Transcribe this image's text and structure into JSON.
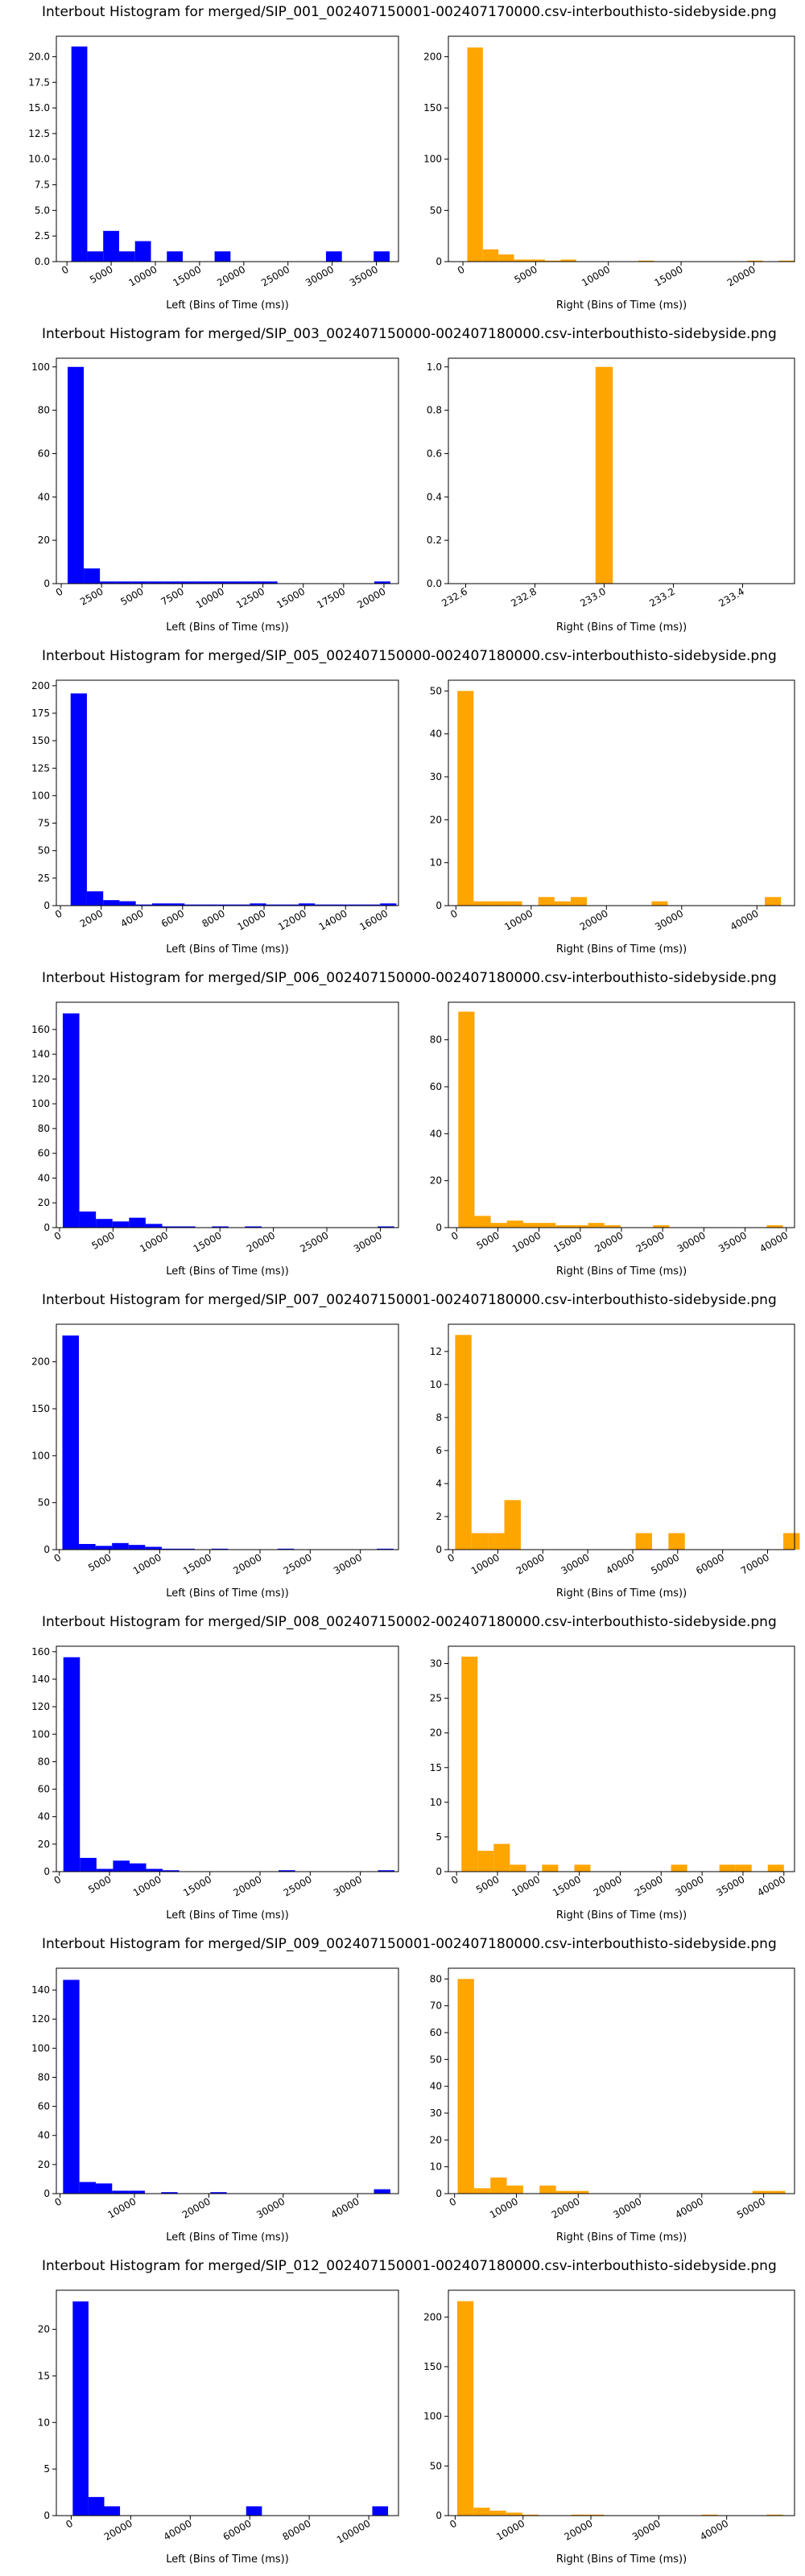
{
  "colors": {
    "left_bars": "#0000ff",
    "right_bars": "#ffa500"
  },
  "chart_data": [
    {
      "type": "bar",
      "title": "Interbout Histogram for merged/SIP_001_002407150001-002407170000.csv-interbouthisto-sidebyside.png",
      "left": {
        "xlabel": "Left (Bins of Time (ms))",
        "xlim": [
          -1200,
          37500
        ],
        "ylim": [
          0,
          22
        ],
        "xticks": [
          0,
          5000,
          10000,
          15000,
          20000,
          25000,
          30000,
          35000
        ],
        "xticklabels": [
          "0",
          "5000",
          "10000",
          "15000",
          "20000",
          "25000",
          "30000",
          "35000"
        ],
        "yticks": [
          0,
          2.5,
          5,
          7.5,
          10,
          12.5,
          15,
          17.5,
          20
        ],
        "yticklabels": [
          "0.0",
          "2.5",
          "5.0",
          "7.5",
          "10.0",
          "12.5",
          "15.0",
          "17.5",
          "20.0"
        ],
        "bin_start": 500,
        "bin_width": 1800,
        "values": [
          21,
          1,
          3,
          1,
          2,
          0,
          1,
          0,
          0,
          1,
          0,
          0,
          0,
          0,
          0,
          0,
          1,
          0,
          0,
          1
        ]
      },
      "right": {
        "xlabel": "Right (Bins of Time (ms))",
        "xlim": [
          -1000,
          22800
        ],
        "ylim": [
          0,
          220
        ],
        "xticks": [
          0,
          5000,
          10000,
          15000,
          20000
        ],
        "xticklabels": [
          "0",
          "5000",
          "10000",
          "15000",
          "20000"
        ],
        "yticks": [
          0,
          50,
          100,
          150,
          200
        ],
        "yticklabels": [
          "0",
          "50",
          "100",
          "150",
          "200"
        ],
        "bin_start": 300,
        "bin_width": 1070,
        "values": [
          209,
          12,
          7,
          2,
          2,
          1,
          2,
          0,
          0,
          0,
          0,
          1,
          0,
          0,
          0,
          0,
          0,
          0,
          1,
          0,
          1
        ]
      }
    },
    {
      "type": "bar",
      "title": "Interbout Histogram for merged/SIP_003_002407150000-002407180000.csv-interbouthisto-sidebyside.png",
      "left": {
        "xlabel": "Left (Bins of Time (ms))",
        "xlim": [
          -300,
          20900
        ],
        "ylim": [
          0,
          104
        ],
        "xticks": [
          0,
          2500,
          5000,
          7500,
          10000,
          12500,
          15000,
          17500,
          20000
        ],
        "xticklabels": [
          "0",
          "2500",
          "5000",
          "7500",
          "10000",
          "12500",
          "15000",
          "17500",
          "20000"
        ],
        "yticks": [
          0,
          20,
          40,
          60,
          80,
          100
        ],
        "yticklabels": [
          "0",
          "20",
          "40",
          "60",
          "80",
          "100"
        ],
        "bin_start": 400,
        "bin_width": 1000,
        "values": [
          100,
          7,
          1,
          1,
          1,
          1,
          1,
          1,
          1,
          1,
          1,
          1,
          1,
          0,
          0,
          0,
          0,
          0,
          0,
          1
        ]
      },
      "right": {
        "xlabel": "Right (Bins of Time (ms))",
        "xlim": [
          232.55,
          233.55
        ],
        "ylim": [
          0,
          1.04
        ],
        "xticks": [
          232.6,
          232.8,
          233.0,
          233.2,
          233.4
        ],
        "xticklabels": [
          "232.6",
          "232.8",
          "233.0",
          "233.2",
          "233.4"
        ],
        "yticks": [
          0,
          0.2,
          0.4,
          0.6,
          0.8,
          1.0
        ],
        "yticklabels": [
          "0.0",
          "0.2",
          "0.4",
          "0.6",
          "0.8",
          "1.0"
        ],
        "bin_start": 232.975,
        "bin_width": 0.05,
        "values": [
          1
        ]
      }
    },
    {
      "type": "bar",
      "title": "Interbout Histogram for merged/SIP_005_002407150000-002407180000.csv-interbouthisto-sidebyside.png",
      "left": {
        "xlabel": "Left (Bins of Time (ms))",
        "xlim": [
          -200,
          16600
        ],
        "ylim": [
          0,
          205
        ],
        "xticks": [
          0,
          2000,
          4000,
          6000,
          8000,
          10000,
          12000,
          14000,
          16000
        ],
        "xticklabels": [
          "0",
          "2000",
          "4000",
          "6000",
          "8000",
          "10000",
          "12000",
          "14000",
          "16000"
        ],
        "yticks": [
          0,
          25,
          50,
          75,
          100,
          125,
          150,
          175,
          200
        ],
        "yticklabels": [
          "0",
          "25",
          "50",
          "75",
          "100",
          "125",
          "150",
          "175",
          "200"
        ],
        "bin_start": 500,
        "bin_width": 800,
        "values": [
          193,
          13,
          5,
          4,
          1,
          2,
          2,
          1,
          1,
          1,
          1,
          2,
          1,
          1,
          2,
          1,
          1,
          1,
          1,
          2
        ]
      },
      "right": {
        "xlabel": "Right (Bins of Time (ms))",
        "xlim": [
          -1000,
          45000
        ],
        "ylim": [
          0,
          52.5
        ],
        "xticks": [
          0,
          10000,
          20000,
          30000,
          40000
        ],
        "xticklabels": [
          "0",
          "10000",
          "20000",
          "30000",
          "40000"
        ],
        "yticks": [
          0,
          10,
          20,
          30,
          40,
          50
        ],
        "yticklabels": [
          "0",
          "10",
          "20",
          "30",
          "40",
          "50"
        ],
        "bin_start": 200,
        "bin_width": 2150,
        "values": [
          50,
          1,
          1,
          1,
          0,
          2,
          1,
          2,
          0,
          0,
          0,
          0,
          1,
          0,
          0,
          0,
          0,
          0,
          0,
          2
        ]
      }
    },
    {
      "type": "bar",
      "title": "Interbout Histogram for merged/SIP_006_002407150000-002407180000.csv-interbouthisto-sidebyside.png",
      "left": {
        "xlabel": "Left (Bins of Time (ms))",
        "xlim": [
          -300,
          31700
        ],
        "ylim": [
          0,
          182
        ],
        "xticks": [
          0,
          5000,
          10000,
          15000,
          20000,
          25000,
          30000
        ],
        "xticklabels": [
          "0",
          "5000",
          "10000",
          "15000",
          "20000",
          "25000",
          "30000"
        ],
        "yticks": [
          0,
          20,
          40,
          60,
          80,
          100,
          120,
          140,
          160
        ],
        "yticklabels": [
          "0",
          "20",
          "40",
          "60",
          "80",
          "100",
          "120",
          "140",
          "160"
        ],
        "bin_start": 300,
        "bin_width": 1550,
        "values": [
          173,
          13,
          7,
          5,
          8,
          3,
          1,
          1,
          0,
          1,
          0,
          1,
          0,
          0,
          0,
          0,
          0,
          0,
          0,
          1
        ]
      },
      "right": {
        "xlabel": "Right (Bins of Time (ms))",
        "xlim": [
          -1000,
          41000
        ],
        "ylim": [
          0,
          96
        ],
        "xticks": [
          0,
          5000,
          10000,
          15000,
          20000,
          25000,
          30000,
          35000,
          40000
        ],
        "xticklabels": [
          "0",
          "5000",
          "10000",
          "15000",
          "20000",
          "25000",
          "30000",
          "35000",
          "40000"
        ],
        "yticks": [
          0,
          20,
          40,
          60,
          80
        ],
        "yticklabels": [
          "0",
          "20",
          "40",
          "60",
          "80"
        ],
        "bin_start": 200,
        "bin_width": 1970,
        "values": [
          92,
          5,
          2,
          3,
          2,
          2,
          1,
          1,
          2,
          1,
          0,
          0,
          1,
          0,
          0,
          0,
          0,
          0,
          0,
          1
        ]
      }
    },
    {
      "type": "bar",
      "title": "Interbout Histogram for merged/SIP_007_002407150001-002407180000.csv-interbouthisto-sidebyside.png",
      "left": {
        "xlabel": "Left (Bins of Time (ms))",
        "xlim": [
          -300,
          33800
        ],
        "ylim": [
          0,
          240
        ],
        "xticks": [
          0,
          5000,
          10000,
          15000,
          20000,
          25000,
          30000
        ],
        "xticklabels": [
          "0",
          "5000",
          "10000",
          "15000",
          "20000",
          "25000",
          "30000"
        ],
        "yticks": [
          0,
          50,
          100,
          150,
          200
        ],
        "yticklabels": [
          "0",
          "50",
          "100",
          "150",
          "200"
        ],
        "bin_start": 300,
        "bin_width": 1650,
        "values": [
          228,
          6,
          4,
          7,
          5,
          3,
          1,
          1,
          0,
          1,
          0,
          0,
          0,
          1,
          0,
          0,
          0,
          0,
          0,
          1
        ]
      },
      "right": {
        "xlabel": "Right (Bins of Time (ms))",
        "xlim": [
          -1000,
          76000
        ],
        "ylim": [
          0,
          13.65
        ],
        "xticks": [
          0,
          10000,
          20000,
          30000,
          40000,
          50000,
          60000,
          70000
        ],
        "xticklabels": [
          "0",
          "10000",
          "20000",
          "30000",
          "40000",
          "50000",
          "60000",
          "70000"
        ],
        "yticks": [
          0,
          2,
          4,
          6,
          8,
          10,
          12
        ],
        "yticklabels": [
          "0",
          "2",
          "4",
          "6",
          "8",
          "10",
          "12"
        ],
        "bin_start": 500,
        "bin_width": 3650,
        "values": [
          13,
          1,
          1,
          3,
          0,
          0,
          0,
          0,
          0,
          0,
          0,
          1,
          0,
          1,
          0,
          0,
          0,
          0,
          0,
          0,
          1
        ]
      }
    },
    {
      "type": "bar",
      "title": "Interbout Histogram for merged/SIP_008_002407150002-002407180000.csv-interbouthisto-sidebyside.png",
      "left": {
        "xlabel": "Left (Bins of Time (ms))",
        "xlim": [
          -300,
          33800
        ],
        "ylim": [
          0,
          164
        ],
        "xticks": [
          0,
          5000,
          10000,
          15000,
          20000,
          25000,
          30000
        ],
        "xticklabels": [
          "0",
          "5000",
          "10000",
          "15000",
          "20000",
          "25000",
          "30000"
        ],
        "yticks": [
          0,
          20,
          40,
          60,
          80,
          100,
          120,
          140,
          160
        ],
        "yticklabels": [
          "0",
          "20",
          "40",
          "60",
          "80",
          "100",
          "120",
          "140",
          "160"
        ],
        "bin_start": 400,
        "bin_width": 1650,
        "values": [
          156,
          10,
          2,
          8,
          6,
          2,
          1,
          0,
          0,
          0,
          0,
          0,
          0,
          1,
          0,
          0,
          0,
          0,
          0,
          1
        ]
      },
      "right": {
        "xlabel": "Right (Bins of Time (ms))",
        "xlim": [
          -1000,
          41300
        ],
        "ylim": [
          0,
          32.5
        ],
        "xticks": [
          0,
          5000,
          10000,
          15000,
          20000,
          25000,
          30000,
          35000,
          40000
        ],
        "xticklabels": [
          "0",
          "5000",
          "10000",
          "15000",
          "20000",
          "25000",
          "30000",
          "35000",
          "40000"
        ],
        "yticks": [
          0,
          5,
          10,
          15,
          20,
          25,
          30
        ],
        "yticklabels": [
          "0",
          "5",
          "10",
          "15",
          "20",
          "25",
          "30"
        ],
        "bin_start": 600,
        "bin_width": 1970,
        "values": [
          31,
          3,
          4,
          1,
          0,
          1,
          0,
          1,
          0,
          0,
          0,
          0,
          0,
          1,
          0,
          0,
          1,
          1,
          0,
          1
        ]
      }
    },
    {
      "type": "bar",
      "title": "Interbout Histogram for merged/SIP_009_002407150001-002407180000.csv-interbouthisto-sidebyside.png",
      "left": {
        "xlabel": "Left (Bins of Time (ms))",
        "xlim": [
          -500,
          45500
        ],
        "ylim": [
          0,
          155
        ],
        "xticks": [
          0,
          10000,
          20000,
          30000,
          40000
        ],
        "xticklabels": [
          "0",
          "10000",
          "20000",
          "30000",
          "40000"
        ],
        "yticks": [
          0,
          20,
          40,
          60,
          80,
          100,
          120,
          140
        ],
        "yticklabels": [
          "0",
          "20",
          "40",
          "60",
          "80",
          "100",
          "120",
          "140"
        ],
        "bin_start": 400,
        "bin_width": 2200,
        "values": [
          147,
          8,
          7,
          2,
          2,
          0,
          1,
          0,
          0,
          1,
          0,
          0,
          0,
          0,
          0,
          0,
          0,
          0,
          0,
          3
        ]
      },
      "right": {
        "xlabel": "Right (Bins of Time (ms))",
        "xlim": [
          -1000,
          55000
        ],
        "ylim": [
          0,
          84
        ],
        "xticks": [
          0,
          10000,
          20000,
          30000,
          40000,
          50000
        ],
        "xticklabels": [
          "0",
          "10000",
          "20000",
          "30000",
          "40000",
          "50000"
        ],
        "yticks": [
          0,
          10,
          20,
          30,
          40,
          50,
          60,
          70,
          80
        ],
        "yticklabels": [
          "0",
          "10",
          "20",
          "30",
          "40",
          "50",
          "60",
          "70",
          "80"
        ],
        "bin_start": 500,
        "bin_width": 2650,
        "values": [
          80,
          2,
          6,
          3,
          0,
          3,
          1,
          1,
          0,
          0,
          0,
          0,
          0,
          0,
          0,
          0,
          0,
          0,
          1,
          1
        ]
      }
    },
    {
      "type": "bar",
      "title": "Interbout Histogram for merged/SIP_012_002407150001-002407180000.csv-interbouthisto-sidebyside.png",
      "left": {
        "xlabel": "Left (Bins of Time (ms))",
        "xlim": [
          -5000,
          110000
        ],
        "ylim": [
          0,
          24.2
        ],
        "xticks": [
          0,
          20000,
          40000,
          60000,
          80000,
          100000
        ],
        "xticklabels": [
          "0",
          "20000",
          "40000",
          "60000",
          "80000",
          "100000"
        ],
        "yticks": [
          0,
          5,
          10,
          15,
          20
        ],
        "yticklabels": [
          "0",
          "5",
          "10",
          "15",
          "20"
        ],
        "bin_start": 500,
        "bin_width": 5300,
        "values": [
          23,
          2,
          1,
          0,
          0,
          0,
          0,
          0,
          0,
          0,
          0,
          1,
          0,
          0,
          0,
          0,
          0,
          0,
          0,
          1
        ]
      },
      "right": {
        "xlabel": "Right (Bins of Time (ms))",
        "xlim": [
          -1000,
          50000
        ],
        "ylim": [
          0,
          227
        ],
        "xticks": [
          0,
          10000,
          20000,
          30000,
          40000
        ],
        "xticklabels": [
          "0",
          "10000",
          "20000",
          "30000",
          "40000"
        ],
        "yticks": [
          0,
          50,
          100,
          150,
          200
        ],
        "yticklabels": [
          "0",
          "50",
          "100",
          "150",
          "200"
        ],
        "bin_start": 300,
        "bin_width": 2400,
        "values": [
          216,
          8,
          5,
          3,
          1,
          0,
          0,
          1,
          1,
          0,
          0,
          0,
          0,
          0,
          0,
          1,
          0,
          0,
          0,
          1
        ]
      }
    }
  ]
}
